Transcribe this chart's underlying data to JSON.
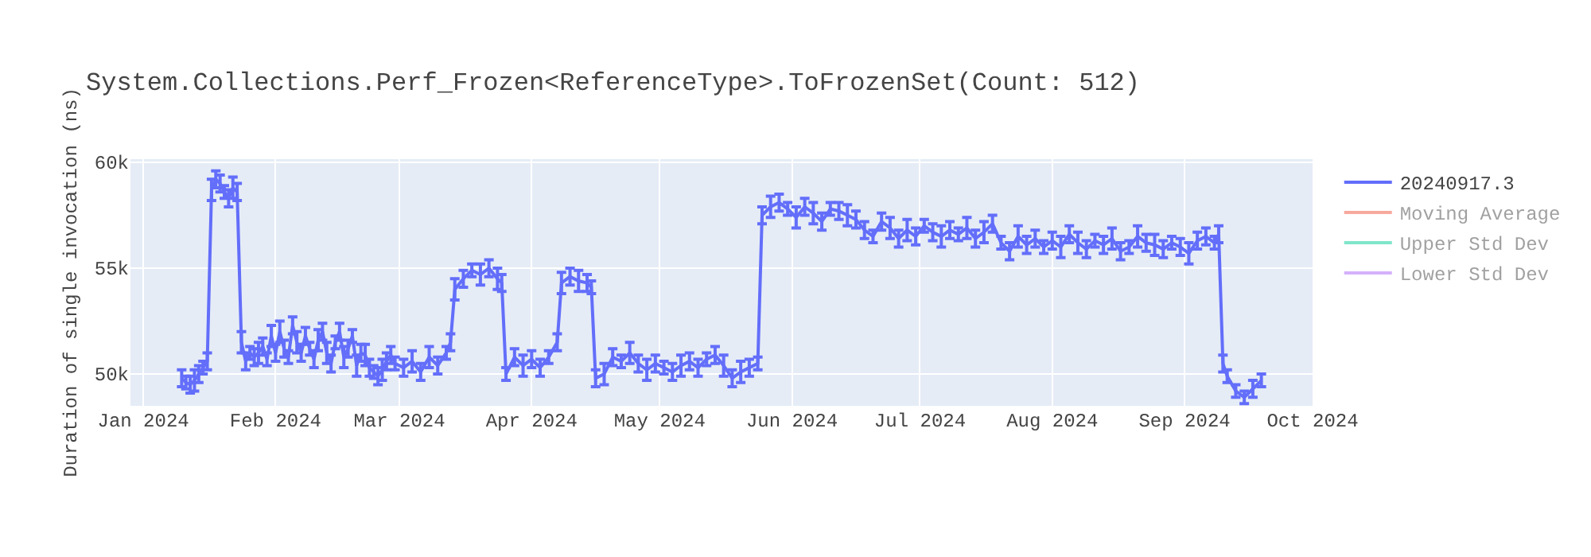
{
  "chart_data": {
    "type": "line",
    "title": "System.Collections.Perf_Frozen<ReferenceType>.ToFrozenSet(Count: 512)",
    "ylabel": "Duration of single invocation (ns)",
    "x": [
      "2024-01-10",
      "2024-01-11",
      "2024-01-12",
      "2024-01-13",
      "2024-01-14",
      "2024-01-15",
      "2024-01-16",
      "2024-01-17",
      "2024-01-18",
      "2024-01-19",
      "2024-01-20",
      "2024-01-21",
      "2024-01-22",
      "2024-01-23",
      "2024-01-24",
      "2024-01-25",
      "2024-01-26",
      "2024-01-27",
      "2024-01-28",
      "2024-01-29",
      "2024-01-30",
      "2024-01-31",
      "2024-02-01",
      "2024-02-02",
      "2024-02-03",
      "2024-02-04",
      "2024-02-05",
      "2024-02-06",
      "2024-02-07",
      "2024-02-08",
      "2024-02-09",
      "2024-02-10",
      "2024-02-11",
      "2024-02-12",
      "2024-02-13",
      "2024-02-14",
      "2024-02-15",
      "2024-02-16",
      "2024-02-17",
      "2024-02-18",
      "2024-02-19",
      "2024-02-20",
      "2024-02-21",
      "2024-02-22",
      "2024-02-23",
      "2024-02-24",
      "2024-02-25",
      "2024-02-26",
      "2024-02-27",
      "2024-02-28",
      "2024-02-29",
      "2024-03-02",
      "2024-03-04",
      "2024-03-06",
      "2024-03-08",
      "2024-03-10",
      "2024-03-12",
      "2024-03-13",
      "2024-03-14",
      "2024-03-16",
      "2024-03-18",
      "2024-03-20",
      "2024-03-22",
      "2024-03-24",
      "2024-03-25",
      "2024-03-26",
      "2024-03-28",
      "2024-03-30",
      "2024-04-01",
      "2024-04-03",
      "2024-04-05",
      "2024-04-07",
      "2024-04-08",
      "2024-04-10",
      "2024-04-12",
      "2024-04-14",
      "2024-04-15",
      "2024-04-16",
      "2024-04-18",
      "2024-04-20",
      "2024-04-22",
      "2024-04-24",
      "2024-04-26",
      "2024-04-28",
      "2024-04-30",
      "2024-05-02",
      "2024-05-04",
      "2024-05-06",
      "2024-05-08",
      "2024-05-10",
      "2024-05-12",
      "2024-05-14",
      "2024-05-16",
      "2024-05-18",
      "2024-05-20",
      "2024-05-22",
      "2024-05-24",
      "2024-05-25",
      "2024-05-27",
      "2024-05-29",
      "2024-05-31",
      "2024-06-02",
      "2024-06-04",
      "2024-06-06",
      "2024-06-08",
      "2024-06-10",
      "2024-06-12",
      "2024-06-14",
      "2024-06-16",
      "2024-06-18",
      "2024-06-20",
      "2024-06-22",
      "2024-06-24",
      "2024-06-26",
      "2024-06-28",
      "2024-06-30",
      "2024-07-02",
      "2024-07-04",
      "2024-07-06",
      "2024-07-08",
      "2024-07-10",
      "2024-07-12",
      "2024-07-14",
      "2024-07-16",
      "2024-07-18",
      "2024-07-20",
      "2024-07-22",
      "2024-07-24",
      "2024-07-26",
      "2024-07-28",
      "2024-07-30",
      "2024-08-01",
      "2024-08-03",
      "2024-08-05",
      "2024-08-07",
      "2024-08-09",
      "2024-08-11",
      "2024-08-13",
      "2024-08-15",
      "2024-08-17",
      "2024-08-19",
      "2024-08-21",
      "2024-08-23",
      "2024-08-25",
      "2024-08-27",
      "2024-08-29",
      "2024-08-31",
      "2024-09-02",
      "2024-09-04",
      "2024-09-06",
      "2024-09-08",
      "2024-09-09",
      "2024-09-10",
      "2024-09-11",
      "2024-09-13",
      "2024-09-15",
      "2024-09-17",
      "2024-09-19"
    ],
    "series": [
      {
        "name": "20240917.3",
        "color": "#636efa",
        "values": [
          49800,
          49600,
          49500,
          49700,
          50000,
          50300,
          50600,
          58700,
          59200,
          59000,
          58600,
          58300,
          58800,
          58600,
          51500,
          50600,
          51000,
          50800,
          51000,
          51300,
          50700,
          51800,
          51000,
          52000,
          51200,
          50800,
          52300,
          51500,
          51000,
          51800,
          51200,
          50700,
          51600,
          52000,
          51000,
          50500,
          51500,
          52000,
          50800,
          51200,
          51800,
          50400,
          51000,
          50900,
          50300,
          50100,
          49900,
          50200,
          50600,
          50900,
          50500,
          50300,
          50600,
          50100,
          50800,
          50400,
          51000,
          51500,
          54000,
          54500,
          54900,
          54700,
          55000,
          54500,
          54300,
          50000,
          50800,
          50400,
          50700,
          50300,
          50800,
          51500,
          54300,
          54600,
          54400,
          54300,
          54100,
          49800,
          50000,
          50800,
          50600,
          51000,
          50500,
          50200,
          50500,
          50300,
          50100,
          50400,
          50600,
          50300,
          50700,
          50900,
          50400,
          49800,
          50100,
          50300,
          50500,
          57500,
          57900,
          58100,
          57800,
          57400,
          57900,
          57600,
          57200,
          57800,
          57700,
          57500,
          57300,
          56800,
          56500,
          57200,
          56900,
          56400,
          56800,
          56500,
          57000,
          56700,
          56500,
          56800,
          56600,
          56900,
          56400,
          56700,
          57100,
          56200,
          55800,
          56500,
          56100,
          56400,
          56000,
          56300,
          56000,
          56600,
          56200,
          55900,
          56300,
          56100,
          56400,
          55800,
          56000,
          56500,
          56200,
          56100,
          55900,
          56200,
          56000,
          55700,
          56300,
          56500,
          56200,
          56600,
          50500,
          49900,
          49200,
          48900,
          49300,
          49700
        ],
        "errors": [
          400,
          300,
          400,
          500,
          400,
          300,
          400,
          500,
          400,
          400,
          300,
          400,
          500,
          400,
          500,
          400,
          300,
          400,
          500,
          400,
          300,
          500,
          400,
          500,
          400,
          300,
          400,
          500,
          400,
          400,
          300,
          400,
          500,
          400,
          500,
          400,
          300,
          400,
          500,
          400,
          300,
          500,
          400,
          500,
          400,
          300,
          400,
          500,
          400,
          400,
          300,
          400,
          500,
          400,
          500,
          400,
          300,
          400,
          500,
          400,
          300,
          500,
          400,
          500,
          400,
          300,
          400,
          500,
          400,
          400,
          300,
          400,
          500,
          400,
          500,
          400,
          300,
          400,
          500,
          400,
          300,
          500,
          400,
          500,
          400,
          300,
          400,
          500,
          400,
          400,
          300,
          400,
          500,
          400,
          500,
          400,
          300,
          400,
          500,
          400,
          300,
          500,
          400,
          500,
          400,
          300,
          400,
          500,
          400,
          400,
          300,
          400,
          500,
          400,
          500,
          400,
          300,
          400,
          500,
          400,
          300,
          500,
          400,
          500,
          400,
          300,
          400,
          500,
          400,
          400,
          300,
          400,
          500,
          400,
          500,
          400,
          300,
          400,
          500,
          400,
          300,
          500,
          400,
          500,
          400,
          300,
          400,
          500,
          400,
          400,
          300,
          400,
          400,
          300,
          300,
          300,
          400,
          300
        ]
      },
      {
        "name": "Moving Average",
        "color": "#ef553b",
        "values": [
          null,
          null,
          null,
          null,
          null,
          null,
          null,
          null,
          null,
          null,
          null,
          null,
          null,
          null,
          null,
          null,
          null,
          null,
          null,
          null,
          null,
          null,
          null,
          null,
          null,
          null,
          null,
          null,
          null,
          null,
          null,
          null,
          null,
          null,
          null,
          null,
          null,
          null,
          null,
          null,
          null,
          null,
          null,
          null,
          null,
          null,
          null,
          null,
          null,
          null,
          null,
          null,
          null,
          null,
          null,
          null,
          null,
          null,
          null,
          null,
          null,
          null,
          null,
          null,
          null,
          null,
          null,
          null,
          null,
          null,
          null,
          null,
          null,
          null,
          null,
          null,
          null,
          null,
          null,
          null,
          null,
          null,
          null,
          null,
          null,
          null,
          null,
          null,
          null,
          null,
          null,
          null,
          null,
          null,
          null,
          null,
          null,
          null,
          null,
          null,
          null,
          null,
          null,
          null,
          null,
          null,
          null,
          null,
          null,
          null,
          null,
          null,
          null,
          null,
          null,
          null,
          null,
          null,
          null,
          null,
          null,
          null,
          null,
          null,
          null,
          null,
          null,
          null,
          null,
          null,
          null,
          null,
          null,
          null,
          null,
          null,
          null,
          null,
          null,
          null,
          null,
          null,
          null,
          null,
          null,
          null,
          null,
          null,
          null,
          null,
          null,
          null,
          null,
          null,
          null,
          null,
          null,
          null
        ]
      },
      {
        "name": "Upper Std Dev",
        "color": "#00cc96",
        "values": [
          null,
          null,
          null,
          null,
          null,
          null,
          null,
          null,
          null,
          null,
          null,
          null,
          null,
          null,
          null,
          null,
          null,
          null,
          null,
          null,
          null,
          null,
          null,
          null,
          null,
          null,
          null,
          null,
          null,
          null,
          null,
          null,
          null,
          null,
          null,
          null,
          null,
          null,
          null,
          null,
          null,
          null,
          null,
          null,
          null,
          null,
          null,
          null,
          null,
          null,
          null,
          null,
          null,
          null,
          null,
          null,
          null,
          null,
          null,
          null,
          null,
          null,
          null,
          null,
          null,
          null,
          null,
          null,
          null,
          null,
          null,
          null,
          null,
          null,
          null,
          null,
          null,
          null,
          null,
          null,
          null,
          null,
          null,
          null,
          null,
          null,
          null,
          null,
          null,
          null,
          null,
          null,
          null,
          null,
          null,
          null,
          null,
          null,
          null,
          null,
          null,
          null,
          null,
          null,
          null,
          null,
          null,
          null,
          null,
          null,
          null,
          null,
          null,
          null,
          null,
          null,
          null,
          null,
          null,
          null,
          null,
          null,
          null,
          null,
          null,
          null,
          null,
          null,
          null,
          null,
          null,
          null,
          null,
          null,
          null,
          null,
          null,
          null,
          null,
          null,
          null,
          null,
          null,
          null,
          null,
          null,
          null,
          null,
          null,
          null,
          null,
          null,
          null,
          null,
          null,
          null,
          null,
          null
        ]
      },
      {
        "name": "Lower Std Dev",
        "color": "#ab63fa",
        "values": [
          null,
          null,
          null,
          null,
          null,
          null,
          null,
          null,
          null,
          null,
          null,
          null,
          null,
          null,
          null,
          null,
          null,
          null,
          null,
          null,
          null,
          null,
          null,
          null,
          null,
          null,
          null,
          null,
          null,
          null,
          null,
          null,
          null,
          null,
          null,
          null,
          null,
          null,
          null,
          null,
          null,
          null,
          null,
          null,
          null,
          null,
          null,
          null,
          null,
          null,
          null,
          null,
          null,
          null,
          null,
          null,
          null,
          null,
          null,
          null,
          null,
          null,
          null,
          null,
          null,
          null,
          null,
          null,
          null,
          null,
          null,
          null,
          null,
          null,
          null,
          null,
          null,
          null,
          null,
          null,
          null,
          null,
          null,
          null,
          null,
          null,
          null,
          null,
          null,
          null,
          null,
          null,
          null,
          null,
          null,
          null,
          null,
          null,
          null,
          null,
          null,
          null,
          null,
          null,
          null,
          null,
          null,
          null,
          null,
          null,
          null,
          null,
          null,
          null,
          null,
          null,
          null,
          null,
          null,
          null,
          null,
          null,
          null,
          null,
          null,
          null,
          null,
          null,
          null,
          null,
          null,
          null,
          null,
          null,
          null,
          null,
          null,
          null,
          null,
          null,
          null,
          null,
          null,
          null,
          null,
          null,
          null,
          null,
          null,
          null,
          null,
          null,
          null,
          null,
          null,
          null,
          null,
          null
        ]
      }
    ],
    "xlim": [
      "2023-12-29",
      "2024-10-01"
    ],
    "xticks": [
      {
        "value": "2024-01-01",
        "label": "Jan 2024"
      },
      {
        "value": "2024-02-01",
        "label": "Feb 2024"
      },
      {
        "value": "2024-03-01",
        "label": "Mar 2024"
      },
      {
        "value": "2024-04-01",
        "label": "Apr 2024"
      },
      {
        "value": "2024-05-01",
        "label": "May 2024"
      },
      {
        "value": "2024-06-01",
        "label": "Jun 2024"
      },
      {
        "value": "2024-07-01",
        "label": "Jul 2024"
      },
      {
        "value": "2024-08-01",
        "label": "Aug 2024"
      },
      {
        "value": "2024-09-01",
        "label": "Sep 2024"
      },
      {
        "value": "2024-10-01",
        "label": "Oct 2024"
      }
    ],
    "ylim": [
      48500,
      60150
    ],
    "yticks": [
      {
        "value": 50000,
        "label": "50k"
      },
      {
        "value": 55000,
        "label": "55k"
      },
      {
        "value": 60000,
        "label": "60k"
      }
    ],
    "grid": true,
    "legend": "top right",
    "marker": "none",
    "line_style": "solid"
  }
}
